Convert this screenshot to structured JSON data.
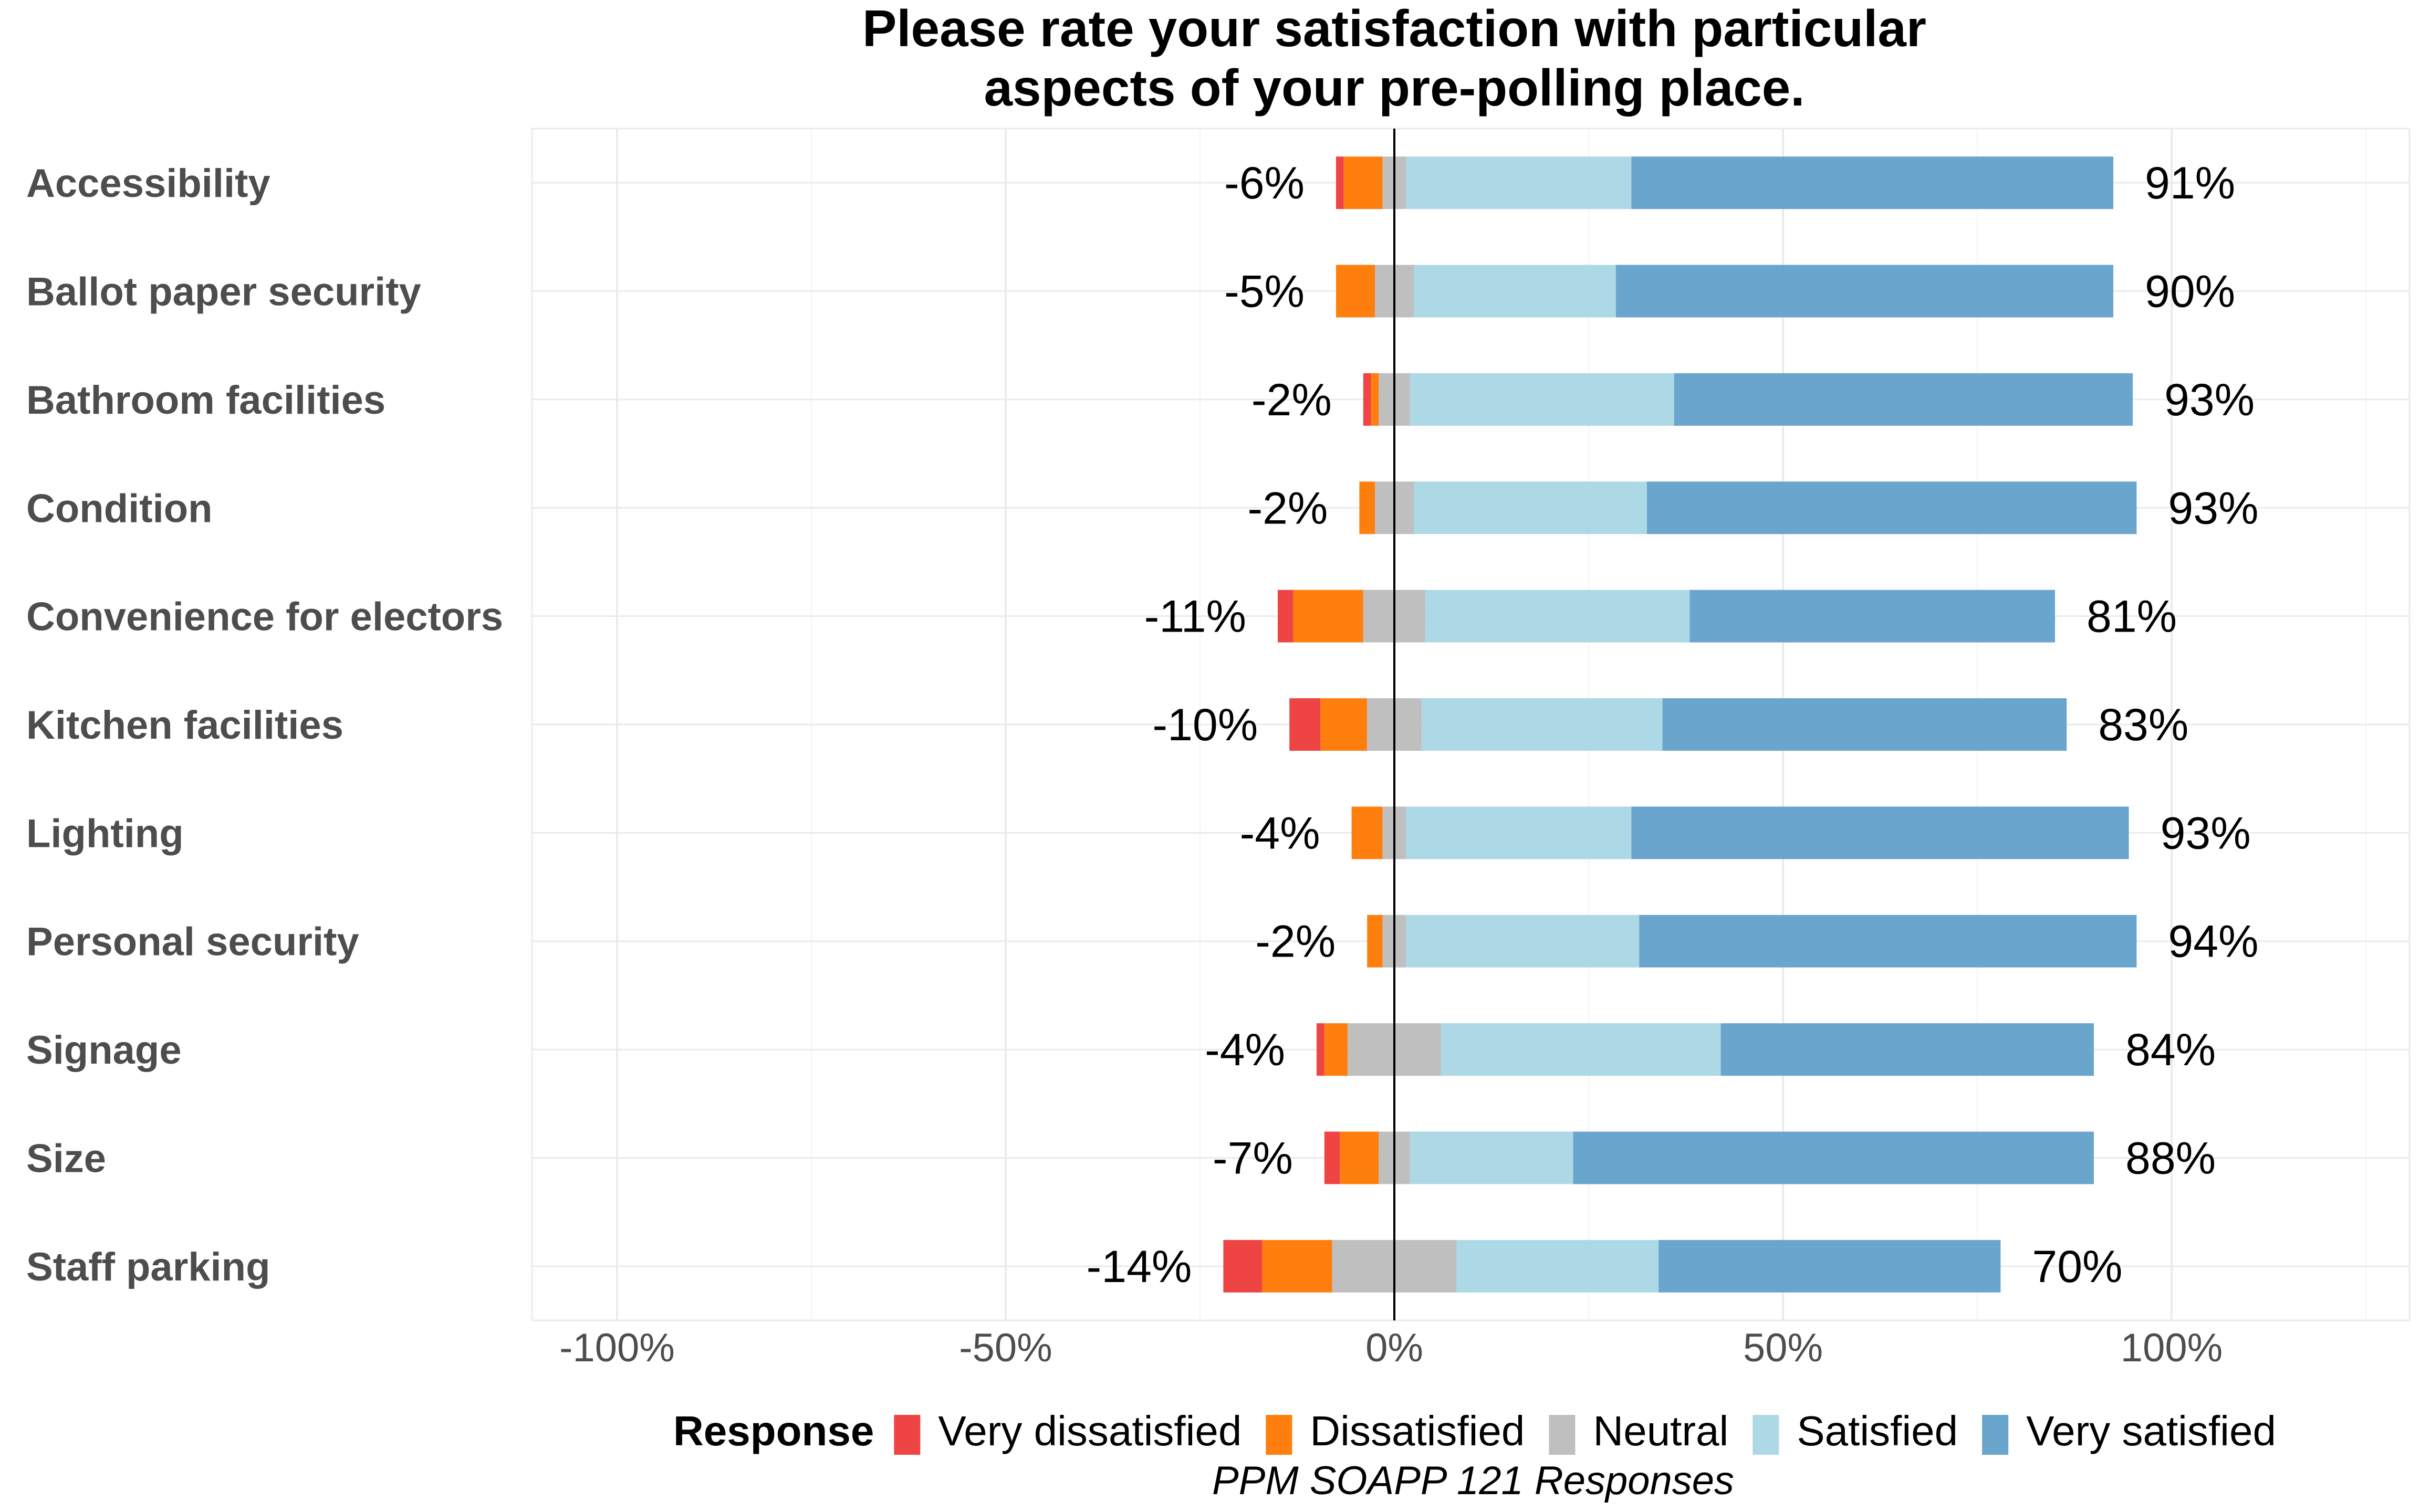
{
  "chart_data": {
    "type": "bar",
    "orientation": "horizontal",
    "stacked": "diverging",
    "title_lines": [
      "Please rate your satisfaction with particular",
      "aspects of your pre-polling place."
    ],
    "caption": "PPM SOAPP 121 Responses",
    "categories": [
      "Accessibility",
      "Ballot paper security",
      "Bathroom facilities",
      "Condition",
      "Convenience for electors",
      "Kitchen facilities",
      "Lighting",
      "Personal security",
      "Signage",
      "Size",
      "Staff parking"
    ],
    "series": [
      {
        "name": "Very dissatisfied",
        "color": "#ef4444",
        "values": [
          1,
          0,
          1,
          0,
          2,
          4,
          0,
          0,
          1,
          2,
          5
        ]
      },
      {
        "name": "Dissatisfied",
        "color": "#ff7f0e",
        "values": [
          5,
          5,
          1,
          2,
          9,
          6,
          4,
          2,
          3,
          5,
          9
        ]
      },
      {
        "name": "Neutral",
        "color": "#bfbfbf",
        "values": [
          3,
          5,
          4,
          5,
          8,
          7,
          3,
          3,
          12,
          4,
          16
        ]
      },
      {
        "name": "Satisfied",
        "color": "#add8e6",
        "values": [
          29,
          26,
          34,
          30,
          34,
          31,
          29,
          30,
          36,
          21,
          26
        ]
      },
      {
        "name": "Very satisfied",
        "color": "#6aa5cd",
        "values": [
          62,
          64,
          59,
          63,
          47,
          52,
          64,
          64,
          48,
          67,
          44
        ]
      }
    ],
    "negative_labels": [
      "-6%",
      "-5%",
      "-2%",
      "-2%",
      "-11%",
      "-10%",
      "-4%",
      "-2%",
      "-4%",
      "-7%",
      "-14%"
    ],
    "positive_labels": [
      "91%",
      "90%",
      "93%",
      "93%",
      "81%",
      "83%",
      "93%",
      "94%",
      "84%",
      "88%",
      "70%"
    ],
    "x_ticks": [
      -100,
      -50,
      0,
      50,
      100
    ],
    "x_tick_labels": [
      "-100%",
      "-50%",
      "0%",
      "50%",
      "100%"
    ],
    "xlim": [
      -111,
      131
    ],
    "grid": true,
    "legend": {
      "title": "Response",
      "position": "bottom",
      "items": [
        "Very dissatisfied",
        "Dissatisfied",
        "Neutral",
        "Satisfied",
        "Very satisfied"
      ]
    }
  }
}
